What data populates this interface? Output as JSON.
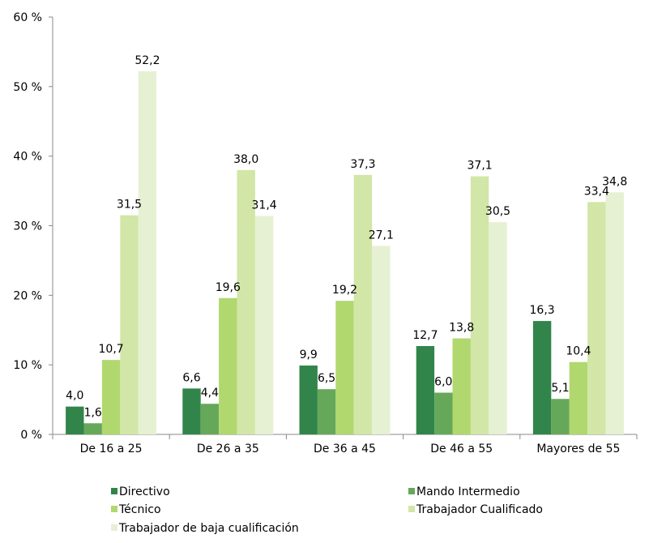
{
  "chart_data": {
    "type": "bar",
    "categories": [
      "De 16 a 25",
      "De 26 a 35",
      "De 36 a 45",
      "De 46 a 55",
      "Mayores de 55"
    ],
    "series": [
      {
        "name": "Directivo",
        "color": "#31854a",
        "values": [
          4.0,
          6.6,
          9.9,
          12.7,
          16.3
        ],
        "labels": [
          "4,0",
          "6,6",
          "9,9",
          "12,7",
          "16,3"
        ]
      },
      {
        "name": "Mando Intermedio",
        "color": "#66a85a",
        "values": [
          1.6,
          4.4,
          6.5,
          6.0,
          5.1
        ],
        "labels": [
          "1,6",
          "4,4",
          "6,5",
          "6,0",
          "5,1"
        ]
      },
      {
        "name": "Técnico",
        "color": "#b0d86e",
        "values": [
          10.7,
          19.6,
          19.2,
          13.8,
          10.4
        ],
        "labels": [
          "10,7",
          "19,6",
          "19,2",
          "13,8",
          "10,4"
        ]
      },
      {
        "name": "Trabajador Cualificado",
        "color": "#d2e6a7",
        "values": [
          31.5,
          38.0,
          37.3,
          37.1,
          33.4
        ],
        "labels": [
          "31,5",
          "38,0",
          "37,3",
          "37,1",
          "33,4"
        ]
      },
      {
        "name": "Trabajador de baja cualificación",
        "color": "#e6f0d3",
        "values": [
          52.2,
          31.4,
          27.1,
          30.5,
          34.8
        ],
        "labels": [
          "52,2",
          "31,4",
          "27,1",
          "30,5",
          "34,8"
        ]
      }
    ],
    "y_ticks": [
      "0 %",
      "10 %",
      "20 %",
      "30 %",
      "40 %",
      "50 %",
      "60 %"
    ],
    "ylim": [
      0,
      60
    ],
    "grid": false,
    "legend_position": "bottom"
  }
}
